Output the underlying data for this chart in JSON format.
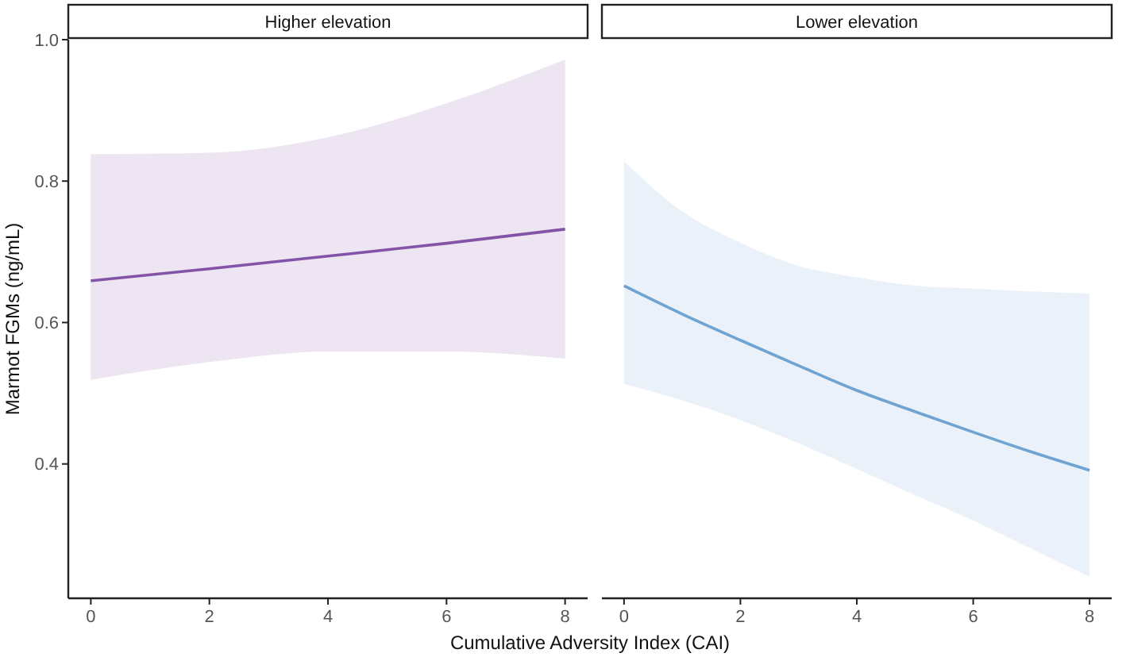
{
  "chart_data": [
    {
      "type": "line",
      "title": "Higher elevation",
      "xlabel": "Cumulative Adversity Index (CAI)",
      "ylabel": "Marmot FGMs (ng/mL)",
      "x": [
        0,
        2,
        4,
        6,
        8
      ],
      "xlim": [
        -0.38,
        8.38
      ],
      "xticks": [
        0,
        2,
        4,
        6,
        8
      ],
      "ylim": [
        0.21,
        1.0
      ],
      "yticks": [
        {
          "value": 0.4,
          "label": "0.4"
        },
        {
          "value": 0.6,
          "label": "0.6"
        },
        {
          "value": 0.8,
          "label": "0.8"
        },
        {
          "value": 1.0,
          "label": "1.0"
        }
      ],
      "grid": false,
      "series": [
        {
          "color": "#8353a8",
          "values": [
            0.659,
            0.676,
            0.694,
            0.712,
            0.732
          ],
          "lower": [
            0.519,
            0.544,
            0.559,
            0.559,
            0.549
          ],
          "upper": [
            0.838,
            0.84,
            0.862,
            0.91,
            0.972
          ]
        }
      ]
    },
    {
      "type": "line",
      "title": "Lower elevation",
      "x": [
        0,
        1,
        2,
        3,
        4,
        5,
        6,
        7,
        8
      ],
      "xlim": [
        -0.38,
        8.38
      ],
      "xticks": [
        0,
        2,
        4,
        6,
        8
      ],
      "ylim": [
        0.21,
        1.0
      ],
      "tick_labels": "x",
      "grid": false,
      "series": [
        {
          "color": "#6fa4d2",
          "values": [
            0.652,
            0.612,
            0.575,
            0.539,
            0.504,
            0.474,
            0.445,
            0.417,
            0.391
          ],
          "lower": [
            0.513,
            0.49,
            0.462,
            0.429,
            0.393,
            0.356,
            0.32,
            0.28,
            0.24
          ],
          "upper": [
            0.828,
            0.757,
            0.713,
            0.68,
            0.664,
            0.652,
            0.648,
            0.644,
            0.641
          ]
        }
      ]
    }
  ]
}
